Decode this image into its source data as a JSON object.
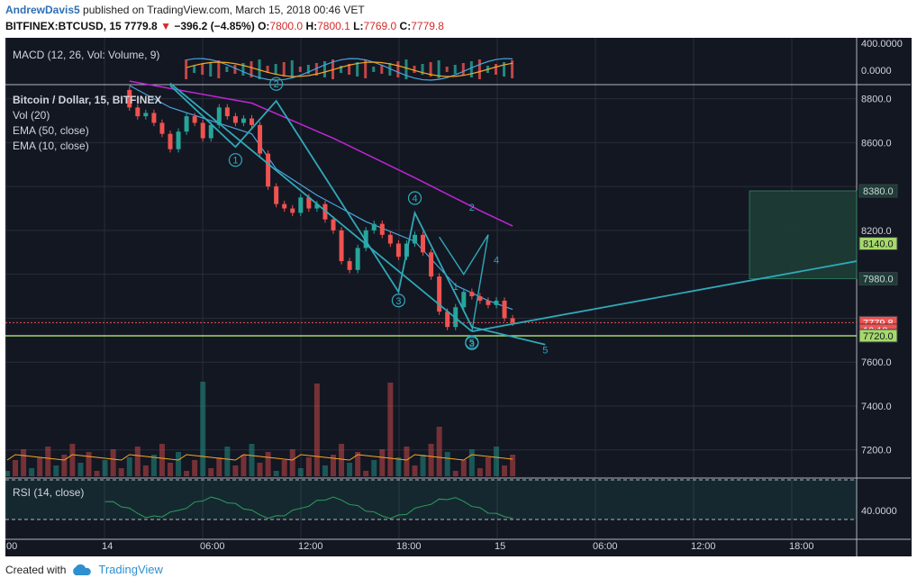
{
  "header": {
    "author": "AndrewDavis5",
    "published": "published on TradingView.com, March 15, 2018 00:46 VET",
    "symbol": "BITFINEX:BTCUSD, 15",
    "last": "7779.8",
    "change": "−396.2 (−4.85%)",
    "open_label": "O:",
    "open": "7800.0",
    "high_label": "H:",
    "high": "7800.1",
    "low_label": "L:",
    "low": "7769.0",
    "close_label": "C:",
    "close": "7779.8"
  },
  "footer": {
    "created_with": "Created with",
    "brand": "TradingView"
  },
  "colors": {
    "background": "#131722",
    "up": "#26a69a",
    "down": "#ef5350",
    "ema50": "#c026d3",
    "ema10": "#4aa3df",
    "pattern": "#2fa9b8",
    "support": "#a6d96a",
    "grid": "#2a2e39",
    "axis_text": "#d1d4dc"
  },
  "chart_data": [
    {
      "pane": "macd",
      "type": "bar",
      "title": "MACD (12, 26, Vol: Volume, 9)",
      "y_ticks": [
        "400.0000",
        "0.0000"
      ]
    },
    {
      "pane": "price",
      "type": "candlestick",
      "title": "Bitcoin / Dollar, 15, BITFINEX",
      "indicators": [
        "Vol (20)",
        "EMA (50, close)",
        "EMA (10, close)"
      ],
      "ylim": [
        7080,
        8860
      ],
      "y_ticks": [
        "8800.0",
        "8600.0",
        "8200.0",
        "7600.0",
        "7400.0",
        "7200.0"
      ],
      "x_ticks": [
        "00",
        "14",
        "06:00",
        "12:00",
        "18:00",
        "15",
        "06:00",
        "12:00",
        "18:00"
      ],
      "candles": [
        {
          "t": 15,
          "o": 8840,
          "c": 8760
        },
        {
          "t": 16,
          "o": 8760,
          "c": 8720
        },
        {
          "t": 17,
          "o": 8720,
          "c": 8735
        },
        {
          "t": 18,
          "o": 8735,
          "c": 8690
        },
        {
          "t": 19,
          "o": 8690,
          "c": 8640
        },
        {
          "t": 20,
          "o": 8640,
          "c": 8570
        },
        {
          "t": 21,
          "o": 8570,
          "c": 8650
        },
        {
          "t": 22,
          "o": 8650,
          "c": 8720
        },
        {
          "t": 23,
          "o": 8720,
          "c": 8690
        },
        {
          "t": 24,
          "o": 8690,
          "c": 8620
        },
        {
          "t": 25,
          "o": 8620,
          "c": 8680
        },
        {
          "t": 26,
          "o": 8680,
          "c": 8760
        },
        {
          "t": 27,
          "o": 8760,
          "c": 8720
        },
        {
          "t": 28,
          "o": 8720,
          "c": 8690
        },
        {
          "t": 29,
          "o": 8690,
          "c": 8710
        },
        {
          "t": 30,
          "o": 8710,
          "c": 8680
        },
        {
          "t": 31,
          "o": 8680,
          "c": 8550
        },
        {
          "t": 32,
          "o": 8550,
          "c": 8400
        },
        {
          "t": 33,
          "o": 8400,
          "c": 8320
        },
        {
          "t": 34,
          "o": 8320,
          "c": 8300
        },
        {
          "t": 35,
          "o": 8300,
          "c": 8280
        },
        {
          "t": 36,
          "o": 8280,
          "c": 8350
        },
        {
          "t": 37,
          "o": 8350,
          "c": 8300
        },
        {
          "t": 38,
          "o": 8300,
          "c": 8320
        },
        {
          "t": 39,
          "o": 8320,
          "c": 8250
        },
        {
          "t": 40,
          "o": 8250,
          "c": 8200
        },
        {
          "t": 41,
          "o": 8200,
          "c": 8060
        },
        {
          "t": 42,
          "o": 8060,
          "c": 8020
        },
        {
          "t": 43,
          "o": 8020,
          "c": 8120
        },
        {
          "t": 44,
          "o": 8120,
          "c": 8200
        },
        {
          "t": 45,
          "o": 8200,
          "c": 8230
        },
        {
          "t": 46,
          "o": 8230,
          "c": 8180
        },
        {
          "t": 47,
          "o": 8180,
          "c": 8140
        },
        {
          "t": 48,
          "o": 8140,
          "c": 8080
        },
        {
          "t": 49,
          "o": 8080,
          "c": 8140
        },
        {
          "t": 50,
          "o": 8140,
          "c": 8180
        },
        {
          "t": 51,
          "o": 8180,
          "c": 8100
        },
        {
          "t": 52,
          "o": 8100,
          "c": 7990
        },
        {
          "t": 53,
          "o": 7990,
          "c": 7830
        },
        {
          "t": 54,
          "o": 7830,
          "c": 7760
        },
        {
          "t": 55,
          "o": 7760,
          "c": 7850
        },
        {
          "t": 56,
          "o": 7850,
          "c": 7920
        },
        {
          "t": 57,
          "o": 7920,
          "c": 7900
        },
        {
          "t": 58,
          "o": 7900,
          "c": 7880
        },
        {
          "t": 59,
          "o": 7880,
          "c": 7860
        },
        {
          "t": 60,
          "o": 7860,
          "c": 7880
        },
        {
          "t": 61,
          "o": 7880,
          "c": 7800
        },
        {
          "t": 62,
          "o": 7800,
          "c": 7779.8
        }
      ],
      "ema50": [
        [
          15,
          8880
        ],
        [
          30,
          8780
        ],
        [
          40,
          8620
        ],
        [
          50,
          8440
        ],
        [
          58,
          8290
        ],
        [
          62,
          8220
        ]
      ],
      "ema10": [
        [
          15,
          8860
        ],
        [
          20,
          8760
        ],
        [
          25,
          8700
        ],
        [
          30,
          8640
        ],
        [
          33,
          8480
        ],
        [
          38,
          8360
        ],
        [
          44,
          8240
        ],
        [
          50,
          8150
        ],
        [
          55,
          7950
        ],
        [
          59,
          7880
        ],
        [
          62,
          7840
        ]
      ],
      "price_labels": [
        "8380.0",
        "8140.0",
        "7980.0",
        "7779.8",
        "13:18",
        "7720.0"
      ],
      "wave_labels": [
        "1",
        "2",
        "3",
        "4",
        "5",
        "3",
        "1",
        "2",
        "4",
        "5"
      ]
    },
    {
      "pane": "rsi",
      "type": "line",
      "title": "RSI (14, close)",
      "y_ticks": [
        "40.0000"
      ]
    }
  ]
}
